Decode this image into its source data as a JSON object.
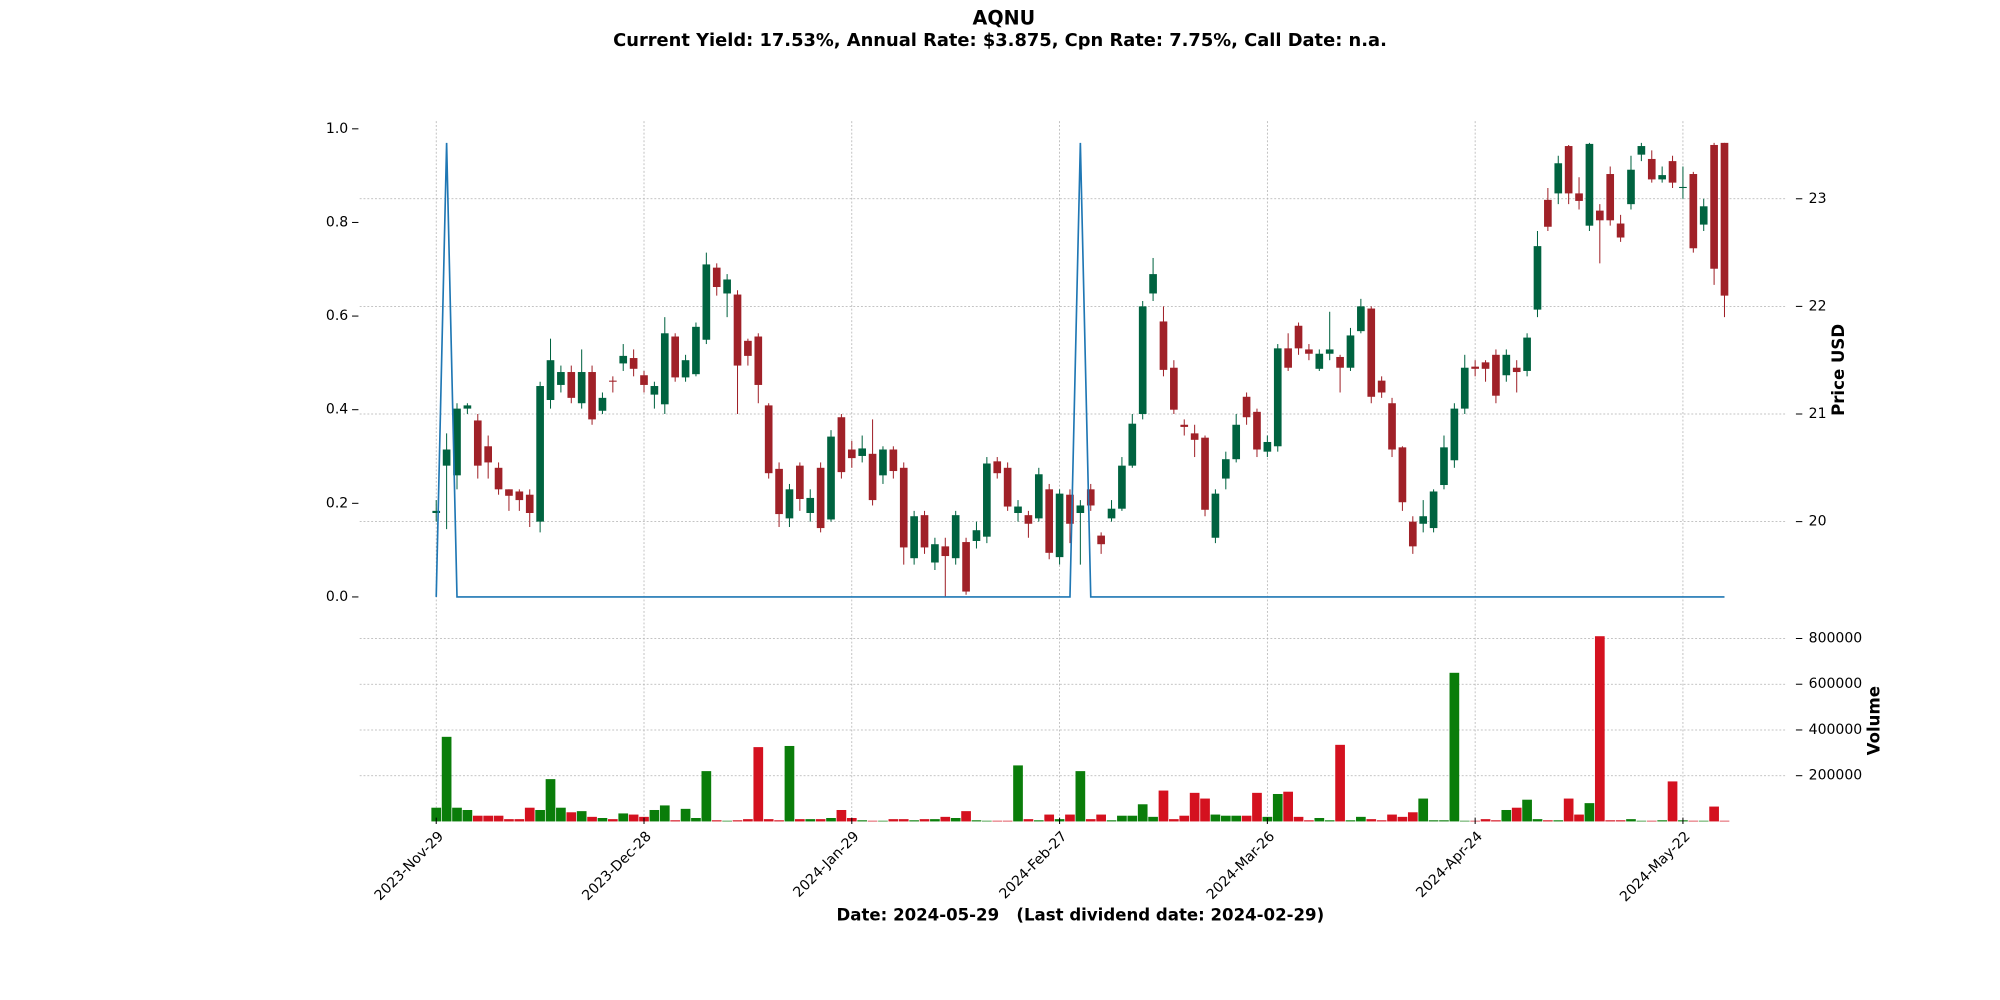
{
  "chart_data": {
    "type": "candlestick",
    "title": "AQNU",
    "subtitle": "Current Yield: 17.53%, Annual Rate: $3.875, Cpn Rate: 7.75%, Call Date: n.a.",
    "xlabel": "Date: 2024-05-29   (Last dividend date: 2024-02-29)",
    "ylabel": "Price USD",
    "grid": true,
    "up_color": "#006340",
    "down_color": "#a02128",
    "categories": [
      "2023-Nov-29",
      null,
      null,
      null,
      null,
      null,
      null,
      null,
      null,
      null,
      null,
      null,
      null,
      null,
      null,
      null,
      null,
      null,
      null,
      null,
      "2023-Dec-28",
      null,
      null,
      null,
      null,
      null,
      null,
      null,
      null,
      null,
      null,
      null,
      null,
      null,
      null,
      null,
      null,
      null,
      null,
      null,
      "2024-Jan-29",
      null,
      null,
      null,
      null,
      null,
      null,
      null,
      null,
      null,
      null,
      null,
      null,
      null,
      null,
      null,
      null,
      null,
      null,
      null,
      "2024-Feb-27",
      null,
      null,
      null,
      null,
      null,
      null,
      null,
      null,
      null,
      null,
      null,
      null,
      null,
      null,
      null,
      null,
      null,
      null,
      null,
      "2024-Mar-26",
      null,
      null,
      null,
      null,
      null,
      null,
      null,
      null,
      null,
      null,
      null,
      null,
      null,
      null,
      null,
      null,
      null,
      null,
      null,
      "2024-Apr-24",
      null,
      null,
      null,
      null,
      null,
      null,
      null,
      null,
      null,
      null,
      null,
      null,
      null,
      null,
      null,
      null,
      null,
      null,
      null,
      "2024-May-22",
      null,
      null,
      null,
      null
    ],
    "open": [
      20.08,
      20.52,
      20.43,
      21.05,
      20.94,
      20.7,
      20.5,
      20.3,
      20.28,
      20.25,
      20.0,
      21.13,
      21.27,
      21.39,
      21.1,
      21.39,
      21.03,
      21.31,
      21.47,
      21.52,
      21.36,
      21.18,
      21.09,
      21.72,
      21.34,
      21.37,
      21.69,
      22.36,
      22.12,
      22.11,
      21.68,
      21.72,
      21.08,
      20.49,
      20.03,
      20.52,
      20.08,
      20.5,
      20.02,
      20.97,
      20.67,
      20.61,
      20.63,
      20.43,
      20.67,
      20.5,
      19.66,
      20.06,
      19.62,
      19.77,
      19.66,
      19.81,
      19.82,
      19.86,
      20.56,
      20.5,
      20.08,
      20.06,
      20.03,
      20.3,
      19.67,
      20.25,
      20.08,
      20.3,
      19.87,
      20.03,
      20.12,
      20.52,
      21.0,
      22.12,
      21.86,
      21.43,
      20.9,
      20.82,
      20.78,
      19.85,
      20.4,
      20.58,
      21.16,
      21.02,
      20.65,
      20.7,
      21.61,
      21.82,
      21.6,
      21.42,
      21.56,
      21.53,
      21.43,
      21.77,
      21.98,
      21.31,
      21.1,
      20.69,
      20.0,
      19.98,
      19.94,
      20.34,
      20.57,
      21.05,
      21.44,
      21.48,
      21.55,
      21.36,
      21.43,
      21.4,
      21.97,
      22.99,
      23.05,
      23.49,
      23.05,
      22.75,
      22.89,
      23.23,
      22.77,
      22.95,
      23.41,
      23.37,
      23.18,
      23.35,
      23.1,
      23.23,
      22.76,
      23.5,
      23.6
    ],
    "high": [
      20.2,
      20.82,
      21.1,
      21.1,
      21.0,
      20.8,
      20.55,
      20.3,
      20.3,
      20.3,
      21.3,
      21.7,
      21.45,
      21.45,
      21.6,
      21.45,
      21.2,
      21.35,
      21.65,
      21.6,
      21.4,
      21.3,
      21.9,
      21.75,
      21.55,
      21.85,
      22.5,
      22.4,
      22.3,
      22.15,
      21.7,
      21.75,
      21.1,
      20.55,
      20.35,
      20.55,
      20.3,
      20.55,
      20.85,
      21.0,
      20.75,
      20.8,
      20.95,
      20.7,
      20.7,
      20.55,
      20.1,
      20.1,
      19.85,
      19.85,
      20.1,
      19.85,
      20.0,
      20.6,
      20.6,
      20.55,
      20.2,
      20.1,
      20.5,
      20.35,
      20.3,
      20.3,
      20.2,
      20.35,
      19.9,
      20.2,
      20.6,
      21.0,
      22.05,
      22.45,
      22.0,
      21.5,
      20.95,
      20.9,
      20.8,
      20.3,
      20.65,
      21.0,
      21.2,
      21.05,
      20.8,
      21.65,
      21.75,
      21.85,
      21.65,
      21.6,
      21.95,
      21.55,
      21.8,
      22.07,
      22.0,
      21.35,
      21.15,
      20.7,
      20.05,
      20.2,
      20.3,
      20.8,
      21.1,
      21.55,
      21.5,
      21.5,
      21.6,
      21.6,
      21.5,
      21.75,
      22.7,
      23.1,
      23.4,
      23.5,
      23.2,
      23.6,
      22.95,
      23.3,
      22.85,
      23.4,
      23.55,
      23.45,
      23.3,
      23.4,
      23.3,
      23.25,
      23.0,
      23.6,
      23.65
    ],
    "low": [
      20.0,
      19.93,
      20.3,
      21.0,
      20.4,
      20.4,
      20.25,
      20.1,
      20.1,
      19.95,
      19.9,
      21.05,
      21.2,
      21.1,
      21.05,
      20.9,
      21.0,
      21.2,
      21.4,
      21.35,
      21.2,
      21.05,
      21.0,
      21.3,
      21.3,
      21.35,
      21.65,
      22.1,
      21.9,
      21.0,
      21.45,
      21.1,
      20.4,
      19.95,
      19.95,
      20.1,
      20.0,
      19.9,
      20.0,
      20.4,
      20.5,
      20.55,
      20.15,
      20.35,
      20.4,
      19.6,
      19.6,
      19.7,
      19.55,
      19.3,
      19.6,
      19.32,
      19.75,
      19.8,
      20.4,
      20.1,
      20.0,
      19.85,
      20.0,
      19.65,
      19.6,
      19.8,
      19.6,
      20.1,
      19.7,
      20.0,
      20.1,
      20.5,
      20.95,
      22.05,
      21.35,
      21.0,
      20.8,
      20.6,
      20.05,
      19.8,
      20.3,
      20.55,
      20.9,
      20.6,
      20.6,
      20.65,
      21.4,
      21.55,
      21.5,
      21.4,
      21.5,
      21.2,
      21.4,
      21.75,
      21.1,
      21.15,
      20.6,
      20.1,
      19.7,
      19.9,
      19.9,
      20.3,
      20.5,
      21.0,
      21.35,
      21.3,
      21.1,
      21.3,
      21.2,
      21.35,
      21.9,
      22.7,
      22.95,
      22.95,
      22.9,
      22.7,
      22.4,
      22.75,
      22.6,
      22.9,
      23.35,
      23.15,
      23.15,
      23.1,
      23.0,
      22.5,
      22.7,
      22.2,
      21.9
    ],
    "close": [
      20.1,
      20.67,
      21.05,
      21.08,
      20.52,
      20.55,
      20.3,
      20.24,
      20.2,
      20.08,
      21.26,
      21.5,
      21.39,
      21.15,
      21.39,
      20.95,
      21.15,
      21.3,
      21.54,
      21.42,
      21.27,
      21.26,
      21.75,
      21.34,
      21.5,
      21.81,
      22.39,
      22.18,
      22.25,
      21.45,
      21.54,
      21.27,
      20.45,
      20.07,
      20.3,
      20.21,
      20.22,
      19.94,
      20.79,
      20.46,
      20.59,
      20.68,
      20.2,
      20.67,
      20.47,
      19.76,
      20.05,
      19.76,
      19.79,
      19.68,
      20.06,
      19.35,
      19.92,
      20.54,
      20.45,
      20.14,
      20.14,
      19.98,
      20.44,
      19.71,
      20.26,
      19.98,
      20.15,
      20.15,
      19.79,
      20.12,
      20.52,
      20.91,
      22.0,
      22.3,
      21.41,
      21.04,
      20.88,
      20.76,
      20.11,
      20.26,
      20.58,
      20.9,
      20.97,
      20.67,
      20.74,
      21.61,
      21.43,
      21.61,
      21.56,
      21.56,
      21.6,
      21.43,
      21.73,
      22.0,
      21.16,
      21.2,
      20.67,
      20.18,
      19.77,
      20.05,
      20.28,
      20.69,
      21.05,
      21.43,
      21.42,
      21.42,
      21.17,
      21.55,
      21.39,
      21.71,
      22.56,
      22.74,
      23.33,
      23.05,
      22.98,
      23.51,
      22.8,
      22.8,
      22.64,
      23.27,
      23.49,
      23.18,
      23.22,
      23.15,
      23.11,
      22.54,
      22.93,
      22.35,
      22.1
    ],
    "ylim": [
      19.3,
      23.65
    ],
    "yticks": [
      20,
      21,
      22,
      23
    ],
    "line": {
      "color": "#1f77b4",
      "ylim": [
        0,
        1
      ],
      "yticks": [
        {
          "value": 0,
          "label": "0.0"
        },
        {
          "value": 0.2,
          "label": "0.2"
        },
        {
          "value": 0.4,
          "label": "0.4"
        },
        {
          "value": 0.6,
          "label": "0.6"
        },
        {
          "value": 0.8,
          "label": "0.8"
        },
        {
          "value": 1,
          "label": "1.0"
        }
      ],
      "values": [
        0,
        0.97,
        0,
        0,
        0,
        0,
        0,
        0,
        0,
        0,
        0,
        0,
        0,
        0,
        0,
        0,
        0,
        0,
        0,
        0,
        0,
        0,
        0,
        0,
        0,
        0,
        0,
        0,
        0,
        0,
        0,
        0,
        0,
        0,
        0,
        0,
        0,
        0,
        0,
        0,
        0,
        0,
        0,
        0,
        0,
        0,
        0,
        0,
        0,
        0,
        0,
        0,
        0,
        0,
        0,
        0,
        0,
        0,
        0,
        0,
        0,
        0,
        0.97,
        0,
        0,
        0,
        0,
        0,
        0,
        0,
        0,
        0,
        0,
        0,
        0,
        0,
        0,
        0,
        0,
        0,
        0,
        0,
        0,
        0,
        0,
        0,
        0,
        0,
        0,
        0,
        0,
        0,
        0,
        0,
        0,
        0,
        0,
        0,
        0,
        0,
        0,
        0,
        0,
        0,
        0,
        0,
        0,
        0,
        0,
        0,
        0,
        0,
        0,
        0,
        0,
        0,
        0,
        0,
        0,
        0,
        0,
        0,
        0,
        0,
        0
      ]
    },
    "volume": {
      "ylabel": "Volume",
      "up_color": "#0a7d0a",
      "down_color": "#d4111f",
      "ylim": [
        0,
        820000
      ],
      "yticks": [
        200000,
        400000,
        600000,
        800000
      ],
      "values": [
        60000,
        370000,
        60000,
        50000,
        25000,
        25000,
        25000,
        10000,
        10000,
        60000,
        50000,
        185000,
        60000,
        40000,
        45000,
        20000,
        15000,
        10000,
        35000,
        30000,
        20000,
        50000,
        70000,
        5000,
        55000,
        15000,
        220000,
        5000,
        3000,
        5000,
        10000,
        325000,
        10000,
        5000,
        330000,
        10000,
        10000,
        10000,
        15000,
        50000,
        15000,
        5000,
        3000,
        3000,
        10000,
        10000,
        5000,
        10000,
        10000,
        20000,
        15000,
        45000,
        5000,
        3000,
        3000,
        3000,
        245000,
        10000,
        5000,
        30000,
        10000,
        30000,
        220000,
        10000,
        30000,
        5000,
        25000,
        25000,
        75000,
        20000,
        135000,
        10000,
        25000,
        125000,
        100000,
        30000,
        25000,
        25000,
        25000,
        125000,
        20000,
        120000,
        130000,
        20000,
        5000,
        15000,
        5000,
        335000,
        5000,
        20000,
        10000,
        5000,
        30000,
        20000,
        40000,
        100000,
        5000,
        5000,
        650000,
        3000,
        3000,
        10000,
        5000,
        50000,
        60000,
        95000,
        10000,
        5000,
        5000,
        100000,
        30000,
        80000,
        810000,
        5000,
        5000,
        10000,
        3000,
        3000,
        5000,
        175000,
        5000,
        3000,
        3000,
        65000,
        3000
      ]
    }
  }
}
